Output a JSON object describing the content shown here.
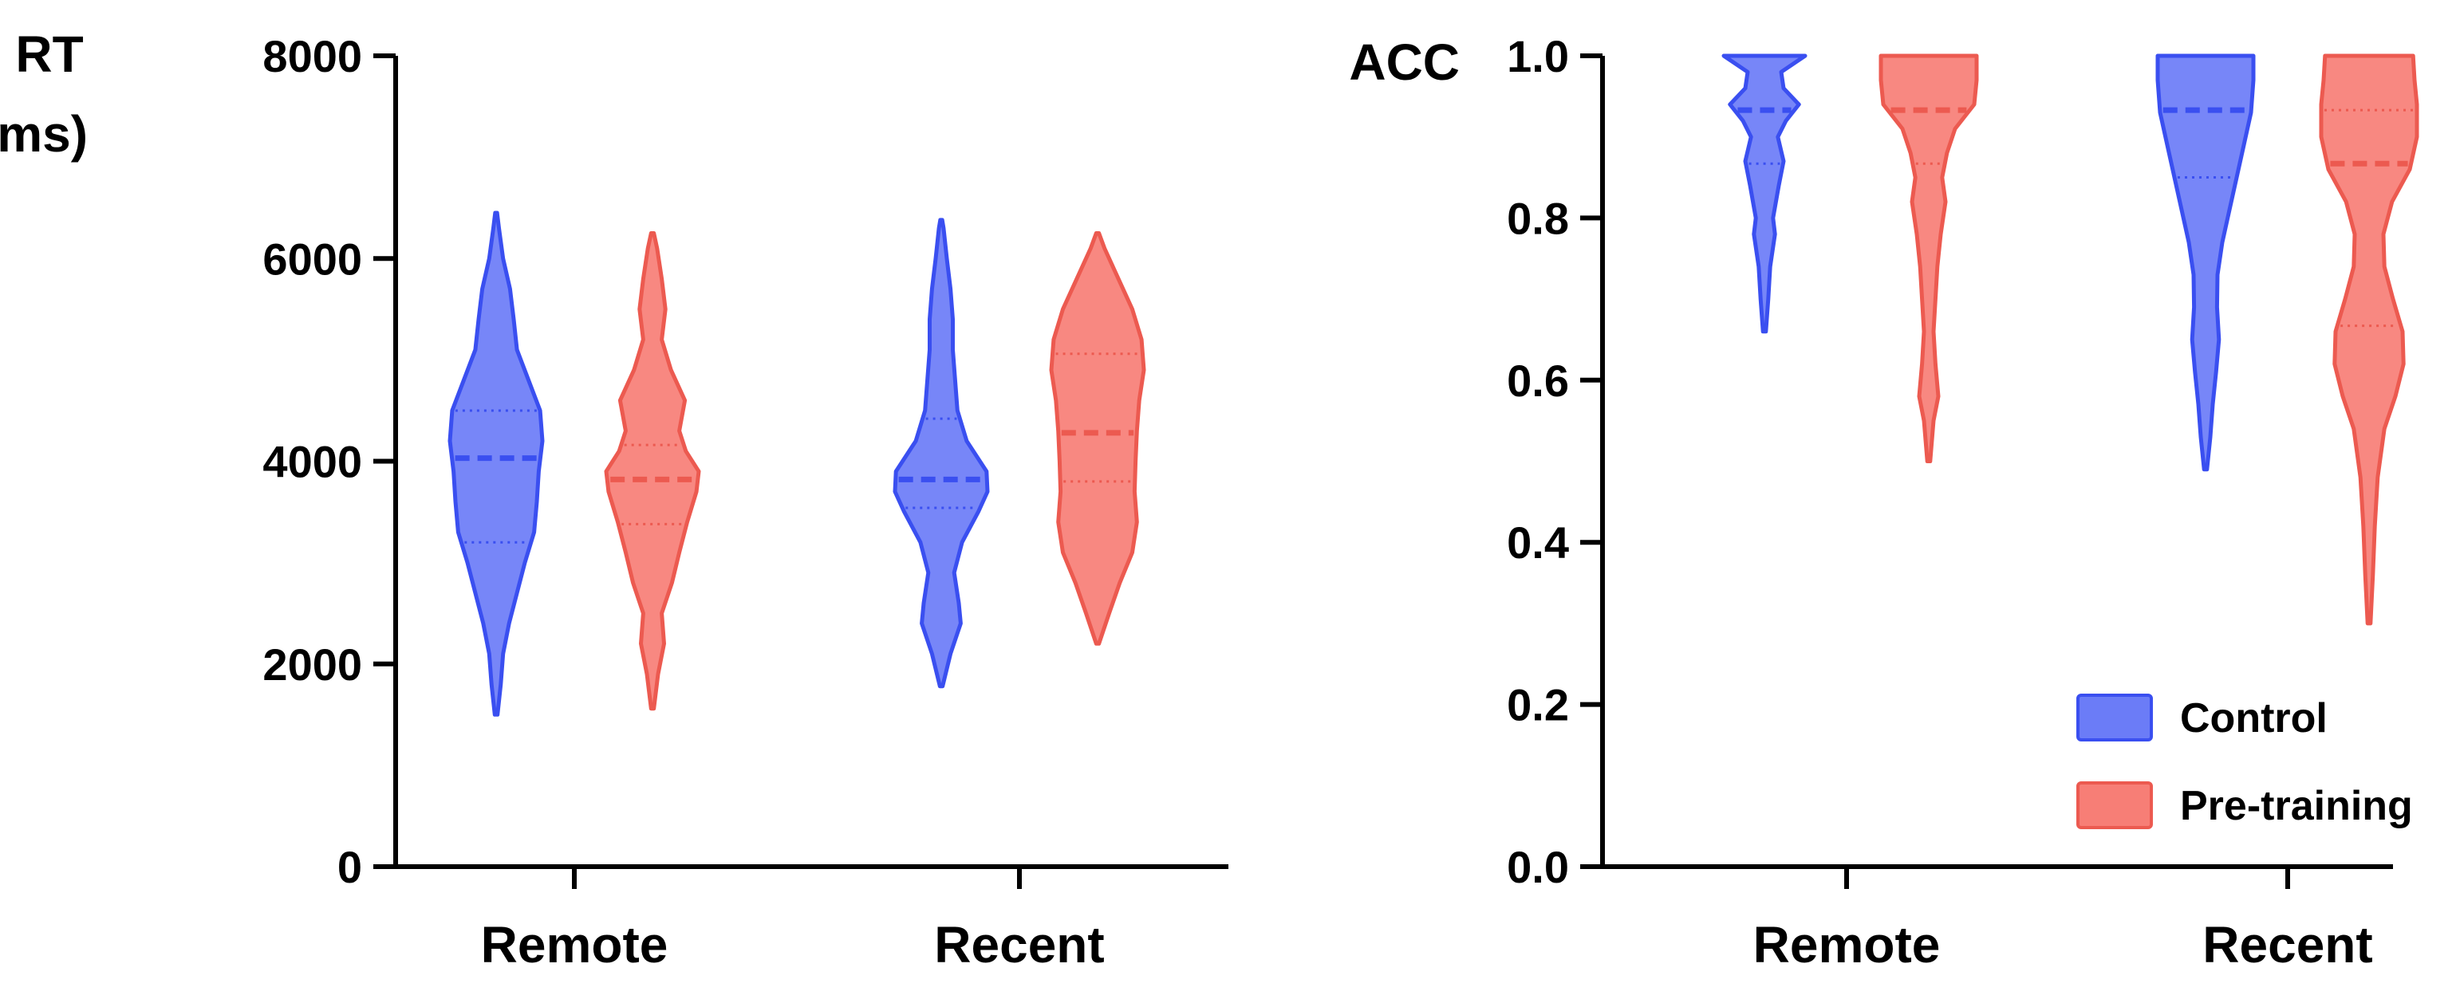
{
  "colors": {
    "control_fill": "#6b7cf7",
    "control_stroke": "#3a4ff0",
    "pretraining_fill": "#f77e76",
    "pretraining_stroke": "#ec5a50",
    "axis": "#000000"
  },
  "chart_data": [
    {
      "type": "violin",
      "ylabel_line1": "RT",
      "ylabel_line2": "(ms)",
      "ylim": [
        0,
        8000
      ],
      "yticks": [
        0,
        2000,
        4000,
        6000,
        8000
      ],
      "ytick_labels": [
        "0",
        "2000",
        "4000",
        "6000",
        "8000"
      ],
      "categories": [
        "Remote",
        "Recent"
      ],
      "series_names": [
        "Control",
        "Pre-training"
      ],
      "violins": [
        {
          "category": "Remote",
          "series": "Control",
          "min": 1500,
          "max": 6450,
          "median": 4030,
          "q1": 3200,
          "q3": 4500,
          "profile": [
            [
              1500,
              0.03
            ],
            [
              1800,
              0.1
            ],
            [
              2100,
              0.15
            ],
            [
              2400,
              0.28
            ],
            [
              2700,
              0.45
            ],
            [
              3000,
              0.62
            ],
            [
              3300,
              0.82
            ],
            [
              3600,
              0.88
            ],
            [
              3900,
              0.92
            ],
            [
              4200,
              1.0
            ],
            [
              4500,
              0.95
            ],
            [
              4800,
              0.7
            ],
            [
              5100,
              0.45
            ],
            [
              5400,
              0.38
            ],
            [
              5700,
              0.3
            ],
            [
              6000,
              0.15
            ],
            [
              6300,
              0.06
            ],
            [
              6450,
              0.02
            ]
          ]
        },
        {
          "category": "Remote",
          "series": "Pre-training",
          "min": 1560,
          "max": 6250,
          "median": 3820,
          "q1": 3380,
          "q3": 4160,
          "profile": [
            [
              1560,
              0.03
            ],
            [
              1900,
              0.12
            ],
            [
              2200,
              0.25
            ],
            [
              2500,
              0.2
            ],
            [
              2800,
              0.42
            ],
            [
              3100,
              0.58
            ],
            [
              3400,
              0.75
            ],
            [
              3700,
              0.95
            ],
            [
              3900,
              1.0
            ],
            [
              4100,
              0.72
            ],
            [
              4300,
              0.58
            ],
            [
              4600,
              0.7
            ],
            [
              4900,
              0.4
            ],
            [
              5200,
              0.2
            ],
            [
              5500,
              0.28
            ],
            [
              5800,
              0.2
            ],
            [
              6100,
              0.1
            ],
            [
              6250,
              0.03
            ]
          ]
        },
        {
          "category": "Recent",
          "series": "Control",
          "min": 1780,
          "max": 6380,
          "median": 3820,
          "q1": 3540,
          "q3": 4420,
          "profile": [
            [
              1780,
              0.03
            ],
            [
              2100,
              0.2
            ],
            [
              2400,
              0.42
            ],
            [
              2600,
              0.38
            ],
            [
              2900,
              0.28
            ],
            [
              3200,
              0.45
            ],
            [
              3500,
              0.8
            ],
            [
              3700,
              1.0
            ],
            [
              3900,
              0.98
            ],
            [
              4200,
              0.55
            ],
            [
              4500,
              0.35
            ],
            [
              4800,
              0.3
            ],
            [
              5100,
              0.25
            ],
            [
              5400,
              0.25
            ],
            [
              5700,
              0.2
            ],
            [
              6000,
              0.12
            ],
            [
              6300,
              0.05
            ],
            [
              6380,
              0.02
            ]
          ]
        },
        {
          "category": "Recent",
          "series": "Pre-training",
          "min": 2200,
          "max": 6250,
          "median": 4280,
          "q1": 3800,
          "q3": 5060,
          "profile": [
            [
              2200,
              0.03
            ],
            [
              2500,
              0.25
            ],
            [
              2800,
              0.48
            ],
            [
              3100,
              0.75
            ],
            [
              3400,
              0.85
            ],
            [
              3700,
              0.8
            ],
            [
              4000,
              0.82
            ],
            [
              4300,
              0.85
            ],
            [
              4600,
              0.9
            ],
            [
              4900,
              1.0
            ],
            [
              5200,
              0.95
            ],
            [
              5500,
              0.75
            ],
            [
              5800,
              0.45
            ],
            [
              6100,
              0.15
            ],
            [
              6250,
              0.03
            ]
          ]
        }
      ]
    },
    {
      "type": "violin",
      "ylabel_line1": "ACC",
      "ylabel_line2": "",
      "ylim": [
        0,
        1
      ],
      "yticks": [
        0,
        0.2,
        0.4,
        0.6,
        0.8,
        1.0
      ],
      "ytick_labels": [
        "0.0",
        "0.2",
        "0.4",
        "0.6",
        "0.8",
        "1.0"
      ],
      "categories": [
        "Remote",
        "Recent"
      ],
      "series_names": [
        "Control",
        "Pre-training"
      ],
      "violins": [
        {
          "category": "Remote",
          "series": "Control",
          "min": 0.66,
          "max": 1.0,
          "median": 0.933,
          "q1": 0.867,
          "q3": 1.0,
          "profile": [
            [
              0.66,
              0.03
            ],
            [
              0.7,
              0.08
            ],
            [
              0.74,
              0.12
            ],
            [
              0.78,
              0.22
            ],
            [
              0.8,
              0.18
            ],
            [
              0.84,
              0.3
            ],
            [
              0.87,
              0.4
            ],
            [
              0.9,
              0.28
            ],
            [
              0.92,
              0.45
            ],
            [
              0.94,
              0.72
            ],
            [
              0.96,
              0.4
            ],
            [
              0.98,
              0.35
            ],
            [
              1.0,
              0.85
            ]
          ]
        },
        {
          "category": "Remote",
          "series": "Pre-training",
          "min": 0.5,
          "max": 1.0,
          "median": 0.933,
          "q1": 0.867,
          "q3": 1.0,
          "profile": [
            [
              0.5,
              0.03
            ],
            [
              0.55,
              0.1
            ],
            [
              0.58,
              0.2
            ],
            [
              0.62,
              0.14
            ],
            [
              0.66,
              0.1
            ],
            [
              0.7,
              0.14
            ],
            [
              0.74,
              0.18
            ],
            [
              0.78,
              0.25
            ],
            [
              0.82,
              0.35
            ],
            [
              0.85,
              0.28
            ],
            [
              0.88,
              0.38
            ],
            [
              0.91,
              0.55
            ],
            [
              0.94,
              0.95
            ],
            [
              0.97,
              1.0
            ],
            [
              1.0,
              1.0
            ]
          ]
        },
        {
          "category": "Recent",
          "series": "Control",
          "min": 0.49,
          "max": 1.0,
          "median": 0.933,
          "q1": 0.85,
          "q3": 1.0,
          "profile": [
            [
              0.49,
              0.03
            ],
            [
              0.53,
              0.1
            ],
            [
              0.57,
              0.15
            ],
            [
              0.61,
              0.22
            ],
            [
              0.65,
              0.28
            ],
            [
              0.69,
              0.24
            ],
            [
              0.73,
              0.25
            ],
            [
              0.77,
              0.35
            ],
            [
              0.81,
              0.5
            ],
            [
              0.85,
              0.65
            ],
            [
              0.89,
              0.8
            ],
            [
              0.93,
              0.95
            ],
            [
              0.97,
              1.0
            ],
            [
              1.0,
              1.0
            ]
          ]
        },
        {
          "category": "Recent",
          "series": "Pre-training",
          "min": 0.3,
          "max": 1.0,
          "median": 0.867,
          "q1": 0.667,
          "q3": 0.933,
          "profile": [
            [
              0.3,
              0.03
            ],
            [
              0.36,
              0.08
            ],
            [
              0.42,
              0.12
            ],
            [
              0.48,
              0.18
            ],
            [
              0.54,
              0.32
            ],
            [
              0.58,
              0.55
            ],
            [
              0.62,
              0.72
            ],
            [
              0.66,
              0.7
            ],
            [
              0.7,
              0.5
            ],
            [
              0.74,
              0.32
            ],
            [
              0.78,
              0.3
            ],
            [
              0.82,
              0.48
            ],
            [
              0.86,
              0.85
            ],
            [
              0.9,
              1.0
            ],
            [
              0.94,
              1.0
            ],
            [
              0.97,
              0.95
            ],
            [
              1.0,
              0.92
            ]
          ]
        }
      ]
    }
  ],
  "legend": {
    "items": [
      {
        "label": "Control",
        "series": "Control"
      },
      {
        "label": "Pre-training",
        "series": "Pre-training"
      }
    ]
  }
}
